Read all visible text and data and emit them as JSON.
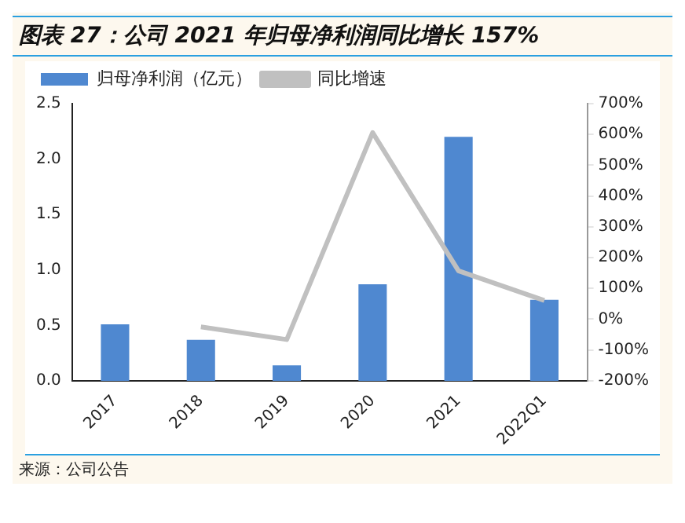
{
  "chart_data": {
    "type": "bar",
    "title": "图表 27：公司 2021 年归母净利润同比增长 157%",
    "categories": [
      "2017",
      "2018",
      "2019",
      "2020",
      "2021",
      "2022Q1"
    ],
    "series": [
      {
        "name": "归母净利润（亿元）",
        "color": "#4f88d0",
        "values": [
          0.51,
          0.37,
          0.14,
          0.87,
          2.2,
          0.73
        ]
      },
      {
        "name": "同比增速",
        "type": "line",
        "axis": "y2",
        "color": "#c0c0c0",
        "marker": "none",
        "values": [
          null,
          -25,
          -66,
          606,
          157,
          61
        ]
      }
    ],
    "ylim": [
      0,
      2.5
    ],
    "yticks": [
      {
        "value": 0,
        "label": "0.0"
      },
      {
        "value": 0.5,
        "label": "0.5"
      },
      {
        "value": 1,
        "label": "1.0"
      },
      {
        "value": 1.5,
        "label": "1.5"
      },
      {
        "value": 2,
        "label": "2.0"
      },
      {
        "value": 2.5,
        "label": "2.5"
      }
    ],
    "y2lim": [
      -200,
      700
    ],
    "y2ticks": [
      {
        "value": -200,
        "label": "-200%"
      },
      {
        "value": -100,
        "label": "-100%"
      },
      {
        "value": 0,
        "label": "0%"
      },
      {
        "value": 100,
        "label": "100%"
      },
      {
        "value": 200,
        "label": "200%"
      },
      {
        "value": 300,
        "label": "300%"
      },
      {
        "value": 400,
        "label": "400%"
      },
      {
        "value": 500,
        "label": "500%"
      },
      {
        "value": 600,
        "label": "600%"
      },
      {
        "value": 700,
        "label": "700%"
      }
    ],
    "grid": false,
    "legend": "top left",
    "annotations": [
      "来源：公司公告"
    ]
  }
}
